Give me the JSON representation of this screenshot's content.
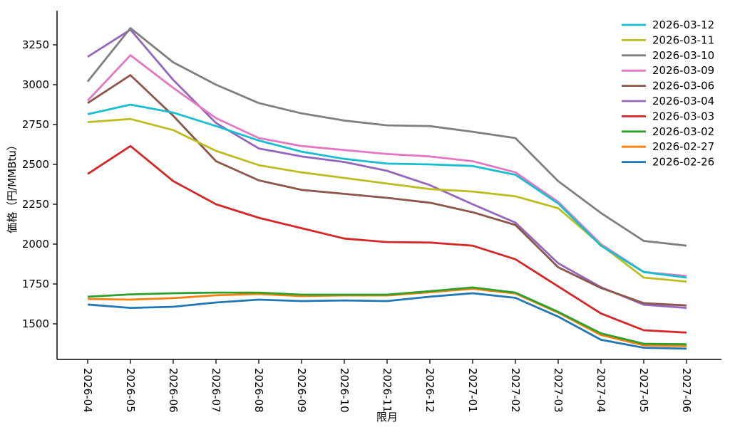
{
  "chart_data": {
    "type": "line",
    "title": "",
    "xlabel": "限月",
    "ylabel": "価格（円/MMBtu）",
    "grid": false,
    "legend_position": "upper right",
    "x_tick_rotation_deg": 90,
    "ylim": [
      1280,
      3465
    ],
    "y_ticks": [
      1500,
      1750,
      2000,
      2250,
      2500,
      2750,
      3000,
      3250
    ],
    "categories": [
      "2026-04",
      "2026-05",
      "2026-06",
      "2026-07",
      "2026-08",
      "2026-09",
      "2026-10",
      "2026-11",
      "2026-12",
      "2027-01",
      "2027-02",
      "2027-03",
      "2027-04",
      "2027-05",
      "2027-06"
    ],
    "series": [
      {
        "name": "2026-03-12",
        "color": "#17becf",
        "values": [
          2815,
          2875,
          2825,
          2740,
          2650,
          2580,
          2535,
          2505,
          2500,
          2490,
          2435,
          2255,
          1990,
          1825,
          1790
        ]
      },
      {
        "name": "2026-03-11",
        "color": "#bcbd22",
        "values": [
          2765,
          2785,
          2715,
          2585,
          2495,
          2450,
          2415,
          2380,
          2345,
          2330,
          2300,
          2225,
          1995,
          1790,
          1765
        ]
      },
      {
        "name": "2026-03-10",
        "color": "#7f7f7f",
        "values": [
          3020,
          3355,
          3140,
          3000,
          2885,
          2820,
          2775,
          2745,
          2740,
          2705,
          2665,
          2395,
          2195,
          2020,
          1990
        ]
      },
      {
        "name": "2026-03-09",
        "color": "#e377c2",
        "values": [
          2900,
          3185,
          2980,
          2790,
          2665,
          2615,
          2590,
          2565,
          2550,
          2520,
          2450,
          2265,
          2000,
          1825,
          1800
        ]
      },
      {
        "name": "2026-03-06",
        "color": "#8c564b",
        "values": [
          2885,
          3060,
          2805,
          2520,
          2400,
          2340,
          2315,
          2290,
          2260,
          2200,
          2120,
          1855,
          1725,
          1630,
          1615
        ]
      },
      {
        "name": "2026-03-04",
        "color": "#9467bd",
        "values": [
          3175,
          3345,
          3030,
          2760,
          2600,
          2550,
          2515,
          2460,
          2370,
          2250,
          2135,
          1880,
          1730,
          1620,
          1600
        ]
      },
      {
        "name": "2026-03-03",
        "color": "#d62728",
        "values": [
          2440,
          2615,
          2395,
          2250,
          2165,
          2100,
          2035,
          2013,
          2010,
          1990,
          1905,
          1735,
          1565,
          1460,
          1445
        ]
      },
      {
        "name": "2026-03-02",
        "color": "#2ca02c",
        "values": [
          1670,
          1685,
          1692,
          1696,
          1696,
          1683,
          1683,
          1683,
          1705,
          1728,
          1696,
          1575,
          1440,
          1375,
          1372
        ]
      },
      {
        "name": "2026-02-27",
        "color": "#ff7f0e",
        "values": [
          1656,
          1652,
          1661,
          1679,
          1687,
          1674,
          1678,
          1678,
          1698,
          1720,
          1690,
          1570,
          1430,
          1365,
          1360
        ]
      },
      {
        "name": "2026-02-26",
        "color": "#1f77b4",
        "values": [
          1621,
          1600,
          1607,
          1634,
          1652,
          1643,
          1647,
          1643,
          1670,
          1692,
          1663,
          1545,
          1400,
          1350,
          1344
        ]
      }
    ]
  }
}
